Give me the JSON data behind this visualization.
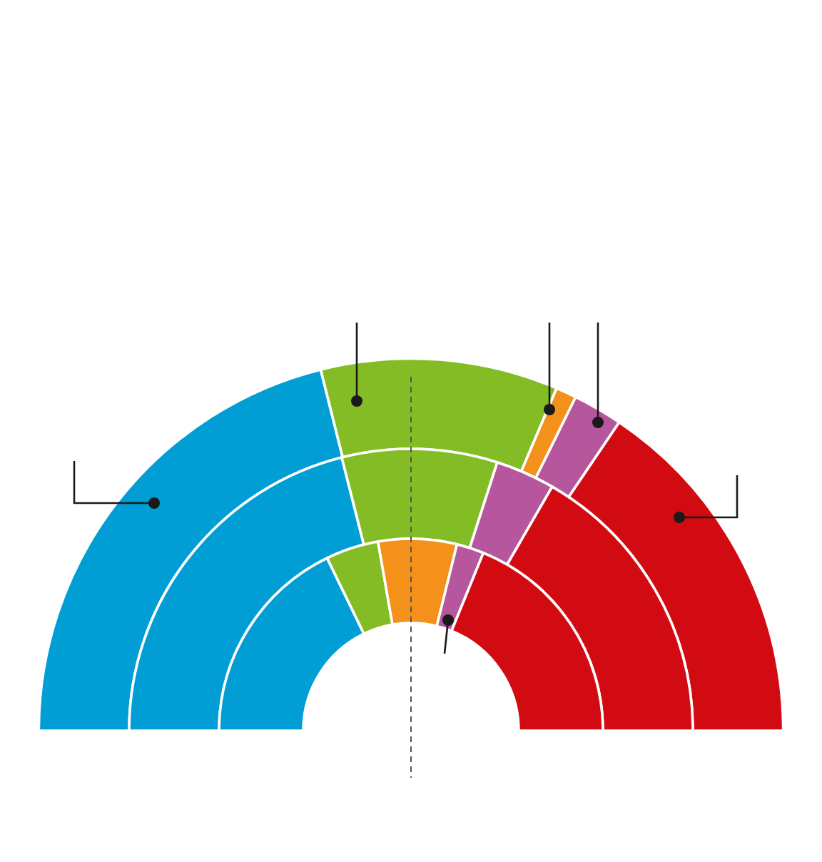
{
  "chart_data": {
    "type": "donut",
    "categories": [
      null,
      null,
      null,
      null,
      null
    ],
    "colors": [
      "#009ed5",
      "#84bc26",
      "#f3911a",
      "#b6579d",
      "#d20b12"
    ],
    "series": [
      {
        "values": [
          42.2,
          20.6,
          1.8,
          4.3,
          31.1
        ]
      },
      {
        "values": [
          42.1,
          17.8,
          null,
          6.8,
          33.3
        ]
      },
      {
        "values": [
          35.6,
          8.9,
          13.2,
          4.6,
          37.7
        ]
      }
    ]
  }
}
